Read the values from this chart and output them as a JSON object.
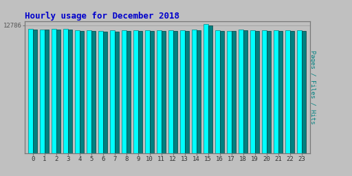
{
  "title": "Hourly usage for December 2018",
  "title_color": "#0000cc",
  "title_fontsize": 9,
  "background_color": "#c0c0c0",
  "plot_bg_color": "#c0c0c0",
  "x_labels": [
    "0",
    "1",
    "2",
    "3",
    "4",
    "5",
    "6",
    "7",
    "8",
    "9",
    "10",
    "11",
    "12",
    "13",
    "14",
    "15",
    "16",
    "17",
    "18",
    "19",
    "20",
    "21",
    "22",
    "23"
  ],
  "ylabel": "Pages / Files / Hits",
  "ylabel_color": "#008080",
  "ytick_label": "12786",
  "ytick_color": "#555555",
  "bar1_values": [
    12400,
    12380,
    12410,
    12430,
    12280,
    12280,
    12230,
    12310,
    12280,
    12290,
    12290,
    12310,
    12300,
    12290,
    12350,
    12900,
    12290,
    12250,
    12330,
    12260,
    12280,
    12290,
    12280,
    12270
  ],
  "bar2_values": [
    12350,
    12330,
    12360,
    12380,
    12230,
    12230,
    12180,
    12150,
    12200,
    12230,
    12240,
    12250,
    12250,
    12240,
    12300,
    12800,
    12230,
    12200,
    12270,
    12210,
    12230,
    12240,
    12230,
    12220
  ],
  "bar1_color": "#00ffff",
  "bar1_edge": "#008080",
  "bar2_color": "#008080",
  "bar2_edge": "#004040",
  "ylim_min": 0,
  "ylim_max": 13200,
  "bar_width": 0.38,
  "ytick_val": 12786
}
